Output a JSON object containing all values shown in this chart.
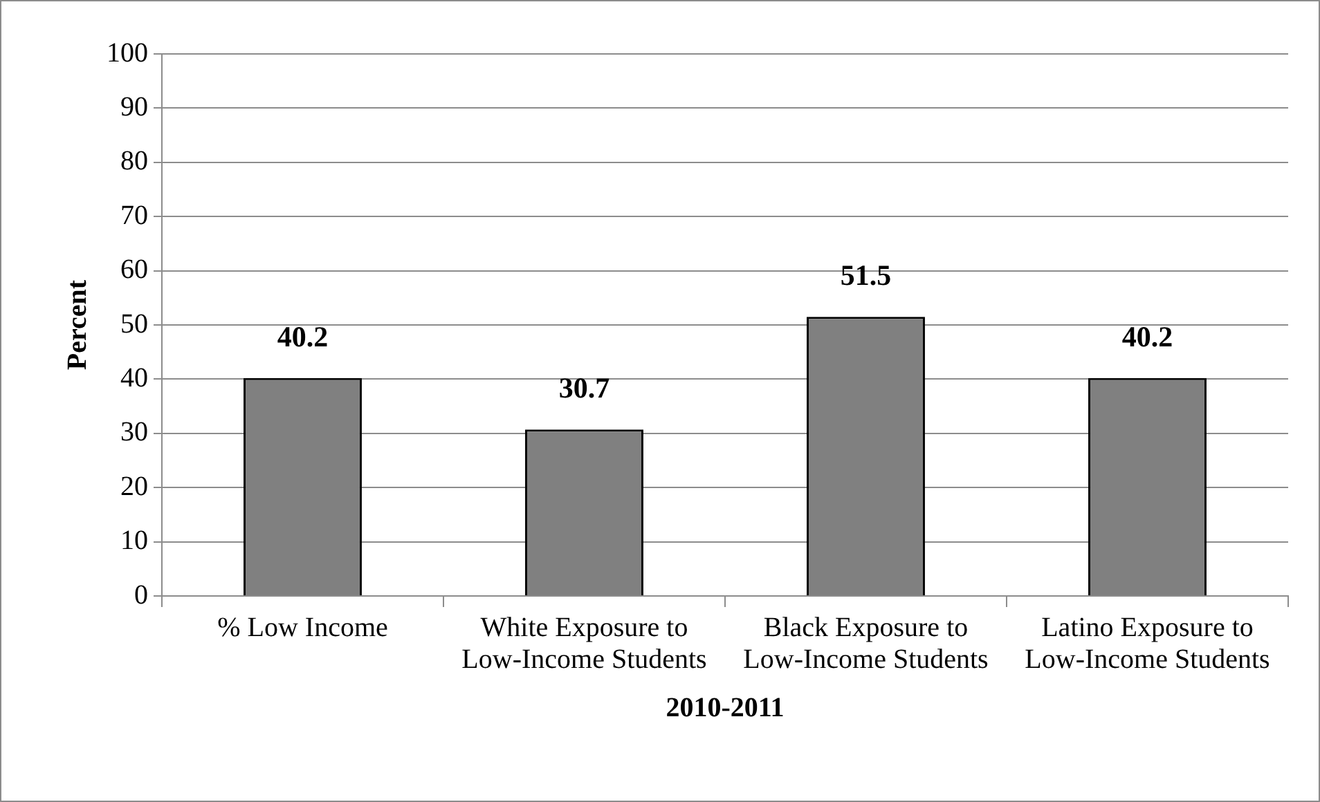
{
  "chart_data": {
    "type": "bar",
    "xlabel": "2010-2011",
    "ylabel": "Percent",
    "categories": [
      "% Low Income",
      "White Exposure to Low-Income Students",
      "Black Exposure to Low-Income Students",
      "Latino Exposure to Low-Income Students"
    ],
    "values": [
      40.2,
      30.7,
      51.5,
      40.2
    ],
    "color": "#808080",
    "ylim": [
      0,
      100
    ],
    "yticks": [
      0,
      10,
      20,
      30,
      40,
      50,
      60,
      70,
      80,
      90,
      100
    ],
    "grid": "y",
    "data_labels": true,
    "legend": false
  }
}
